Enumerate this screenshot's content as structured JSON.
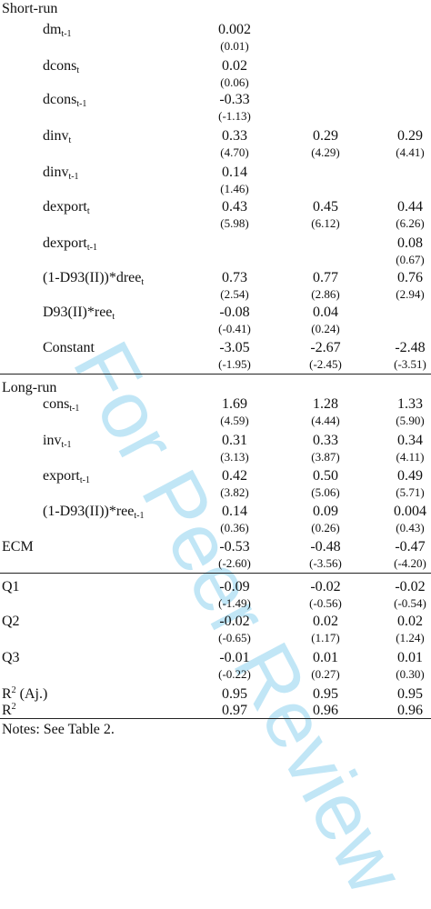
{
  "watermark": "For Peer Review",
  "sections": {
    "short_run": "Short-run",
    "long_run": "Long-run"
  },
  "rows": [
    {
      "label": "dm",
      "sub": "t-1",
      "v": [
        "0.002",
        "",
        ""
      ],
      "se": [
        "(0.01)",
        "",
        ""
      ]
    },
    {
      "label": "dcons",
      "sub": "t",
      "v": [
        "0.02",
        "",
        ""
      ],
      "se": [
        "(0.06)",
        "",
        ""
      ]
    },
    {
      "label": "dcons",
      "sub": "t-1",
      "v": [
        "-0.33",
        "",
        ""
      ],
      "se": [
        "(-1.13)",
        "",
        ""
      ]
    },
    {
      "label": "dinv",
      "sub": "t",
      "v": [
        "0.33",
        "0.29",
        "0.29"
      ],
      "se": [
        "(4.70)",
        "(4.29)",
        "(4.41)"
      ]
    },
    {
      "label": "dinv",
      "sub": "t-1",
      "v": [
        "0.14",
        "",
        ""
      ],
      "se": [
        "(1.46)",
        "",
        ""
      ]
    },
    {
      "label": "dexport",
      "sub": "t",
      "v": [
        "0.43",
        "0.45",
        "0.44"
      ],
      "se": [
        "(5.98)",
        "(6.12)",
        "(6.26)"
      ]
    },
    {
      "label": "dexport",
      "sub": "t-1",
      "v": [
        "",
        "",
        "0.08"
      ],
      "se": [
        "",
        "",
        "(0.67)"
      ]
    },
    {
      "label": "(1-D93(II))*dree",
      "sub": "t",
      "v": [
        "0.73",
        "0.77",
        "0.76"
      ],
      "se": [
        "(2.54)",
        "(2.86)",
        "(2.94)"
      ]
    },
    {
      "label": "D93(II)*ree",
      "sub": "t",
      "v": [
        "-0.08",
        "0.04",
        ""
      ],
      "se": [
        "(-0.41)",
        "(0.24)",
        ""
      ]
    },
    {
      "label": "Constant",
      "sub": "",
      "v": [
        "-3.05",
        "-2.67",
        "-2.48"
      ],
      "se": [
        "(-1.95)",
        "(-2.45)",
        "(-3.51)"
      ]
    },
    {
      "label": "cons",
      "sub": "t-1",
      "v": [
        "1.69",
        "1.28",
        "1.33"
      ],
      "se": [
        "(4.59)",
        "(4.44)",
        "(5.90)"
      ]
    },
    {
      "label": "inv",
      "sub": "t-1",
      "v": [
        "0.31",
        "0.33",
        "0.34"
      ],
      "se": [
        "(3.13)",
        "(3.87)",
        "(4.11)"
      ]
    },
    {
      "label": "export",
      "sub": "t-1",
      "v": [
        "0.42",
        "0.50",
        "0.49"
      ],
      "se": [
        "(3.82)",
        "(5.06)",
        "(5.71)"
      ]
    },
    {
      "label": "(1-D93(II))*ree",
      "sub": "t-1",
      "v": [
        "0.14",
        "0.09",
        "0.004"
      ],
      "se": [
        "(0.36)",
        "(0.26)",
        "(0.43)"
      ]
    },
    {
      "label": "ECM",
      "sub": "",
      "v": [
        "-0.53",
        "-0.48",
        "-0.47"
      ],
      "se": [
        "(-2.60)",
        "(-3.56)",
        "(-4.20)"
      ]
    },
    {
      "label": "Q1",
      "sub": "",
      "v": [
        "-0.09",
        "-0.02",
        "-0.02"
      ],
      "se": [
        "(-1.49)",
        "(-0.56)",
        "(-0.54)"
      ]
    },
    {
      "label": "Q2",
      "sub": "",
      "v": [
        "-0.02",
        "0.02",
        "0.02"
      ],
      "se": [
        "(-0.65)",
        "(1.17)",
        "(1.24)"
      ]
    },
    {
      "label": "Q3",
      "sub": "",
      "v": [
        "-0.01",
        "0.01",
        "0.01"
      ],
      "se": [
        "(-0.22)",
        "(0.27)",
        "(0.30)"
      ]
    },
    {
      "label": "R",
      "sup": "2",
      "suffix": " (Aj.)",
      "v": [
        "0.95",
        "0.95",
        "0.95"
      ],
      "se": [
        "",
        "",
        ""
      ]
    },
    {
      "label": "R",
      "sup": "2",
      "suffix": "",
      "v": [
        "0.97",
        "0.96",
        "0.96"
      ],
      "se": [
        "",
        "",
        ""
      ]
    }
  ],
  "notes": "Notes: See Table 2."
}
